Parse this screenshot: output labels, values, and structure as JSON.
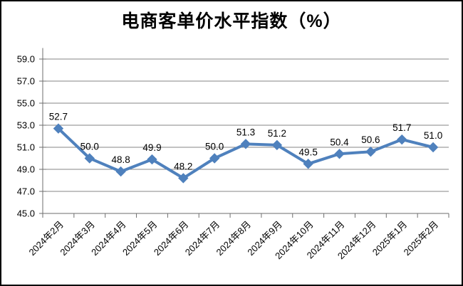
{
  "chart_data": {
    "type": "line",
    "title": "电商客单价水平指数（%）",
    "categories": [
      "2024年2月",
      "2024年3月",
      "2024年4月",
      "2024年5月",
      "2024年6月",
      "2024年7月",
      "2024年8月",
      "2024年9月",
      "2024年10月",
      "2024年11月",
      "2024年12月",
      "2025年1月",
      "2025年2月"
    ],
    "values": [
      52.7,
      50.0,
      48.8,
      49.9,
      48.2,
      50.0,
      51.3,
      51.2,
      49.5,
      50.4,
      50.6,
      51.7,
      51.0
    ],
    "point_labels": [
      "52.7",
      "50.0",
      "48.8",
      "49.9",
      "48.2",
      "50.0",
      "51.3",
      "51.2",
      "49.5",
      "50.4",
      "50.6",
      "51.7",
      "51.0"
    ],
    "xlabel": "",
    "ylabel": "",
    "ylim": [
      45,
      60
    ],
    "ytick_step": 2,
    "ytick_labels": [
      "45.0",
      "47.0",
      "49.0",
      "51.0",
      "53.0",
      "55.0",
      "57.0",
      "59.0"
    ],
    "grid": true,
    "legend": "none",
    "colors": {
      "line": "#4F81BD",
      "marker": "#4F81BD",
      "gridline": "#848484",
      "axis": "#6E6E6E",
      "text": "#000000",
      "background": "#FFFFFF",
      "border": "#000000"
    }
  }
}
